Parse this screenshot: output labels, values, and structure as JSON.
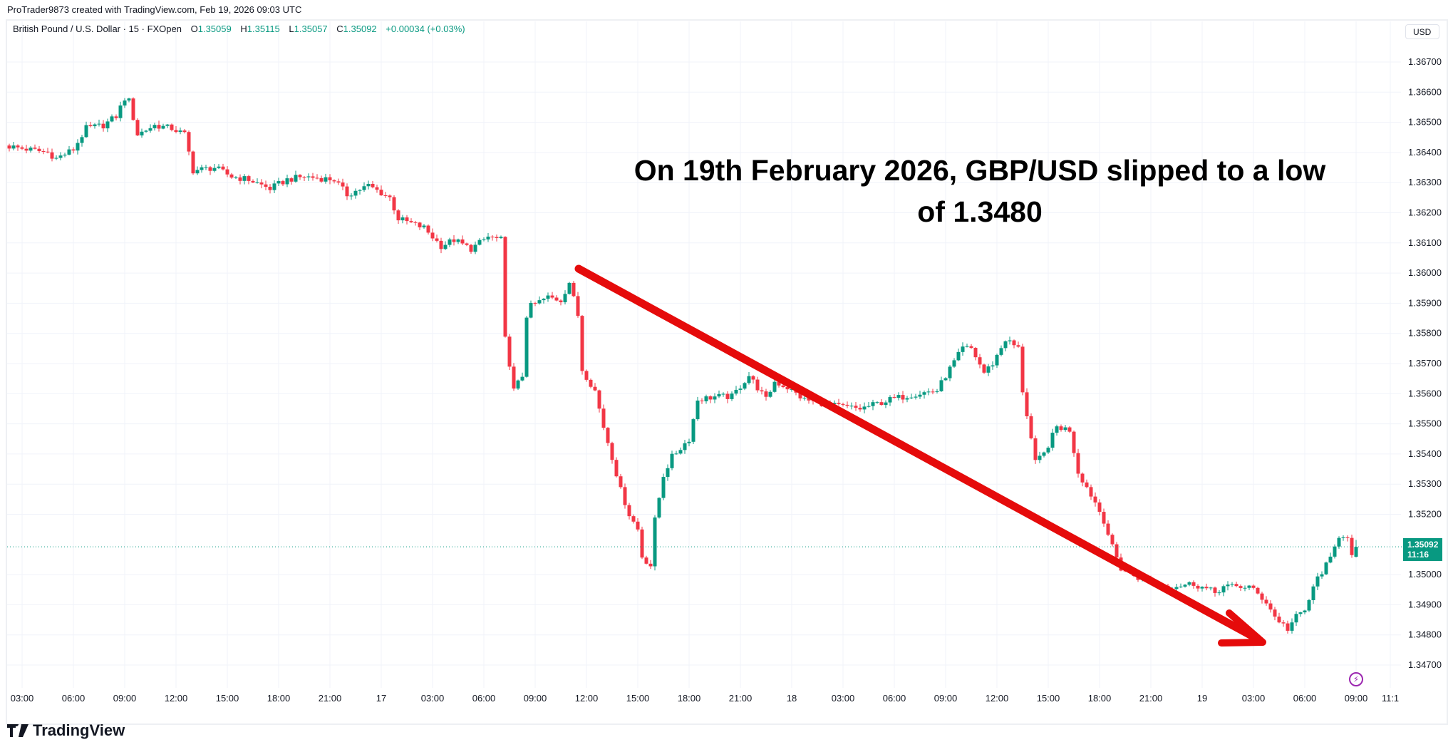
{
  "header": {
    "text": "ProTrader9873 created with TradingView.com, Feb 19, 2026 09:03 UTC"
  },
  "legend": {
    "symbol": "British Pound / U.S. Dollar · 15 · FXOpen",
    "o_label": "O",
    "o": "1.35059",
    "h_label": "H",
    "h": "1.35115",
    "l_label": "L",
    "l": "1.35057",
    "c_label": "C",
    "c": "1.35092",
    "change": "+0.00034 (+0.03%)"
  },
  "currency": "USD",
  "annotation": {
    "line1": "On 19th February 2026, GBP/USD slipped to a low",
    "line2": "of 1.3480"
  },
  "current_price": {
    "price": "1.35092",
    "countdown": "11:16"
  },
  "logo": {
    "text": "TradingView"
  },
  "colors": {
    "up": "#089981",
    "down": "#f23645",
    "arrow": "#e50b0b",
    "grid": "#f0f3fa",
    "alert": "#9c27b0"
  },
  "icons": {
    "alert": "lightning-icon",
    "logo": "tradingview-logo-icon"
  },
  "chart_data": {
    "type": "candlestick",
    "interval": "15",
    "first_candle": "2026-02-16 02:15",
    "last_candle": {
      "time": "2026-02-19 09:00",
      "o": 1.35059,
      "h": 1.35115,
      "l": 1.35057,
      "c": 1.35092
    },
    "ylim": [
      1.3465,
      1.3675
    ],
    "y_ticks": [
      "1.36700",
      "1.36600",
      "1.36500",
      "1.36400",
      "1.36300",
      "1.36200",
      "1.36100",
      "1.36000",
      "1.35900",
      "1.35800",
      "1.35700",
      "1.35600",
      "1.35500",
      "1.35400",
      "1.35300",
      "1.35200",
      "1.35000",
      "1.34900",
      "1.34800",
      "1.34700"
    ],
    "y_tick_values": [
      1.367,
      1.366,
      1.365,
      1.364,
      1.363,
      1.362,
      1.361,
      1.36,
      1.359,
      1.358,
      1.357,
      1.356,
      1.355,
      1.354,
      1.353,
      1.352,
      1.35,
      1.349,
      1.348,
      1.347
    ],
    "x_ticks": [
      {
        "label": "03:00",
        "time": "2026-02-16 03:00"
      },
      {
        "label": "06:00",
        "time": "2026-02-16 06:00"
      },
      {
        "label": "09:00",
        "time": "2026-02-16 09:00"
      },
      {
        "label": "12:00",
        "time": "2026-02-16 12:00"
      },
      {
        "label": "15:00",
        "time": "2026-02-16 15:00"
      },
      {
        "label": "18:00",
        "time": "2026-02-16 18:00"
      },
      {
        "label": "21:00",
        "time": "2026-02-16 21:00"
      },
      {
        "label": "17",
        "time": "2026-02-17 00:00"
      },
      {
        "label": "03:00",
        "time": "2026-02-17 03:00"
      },
      {
        "label": "06:00",
        "time": "2026-02-17 06:00"
      },
      {
        "label": "09:00",
        "time": "2026-02-17 09:00"
      },
      {
        "label": "12:00",
        "time": "2026-02-17 12:00"
      },
      {
        "label": "15:00",
        "time": "2026-02-17 15:00"
      },
      {
        "label": "18:00",
        "time": "2026-02-17 18:00"
      },
      {
        "label": "21:00",
        "time": "2026-02-17 21:00"
      },
      {
        "label": "18",
        "time": "2026-02-18 00:00"
      },
      {
        "label": "03:00",
        "time": "2026-02-18 03:00"
      },
      {
        "label": "06:00",
        "time": "2026-02-18 06:00"
      },
      {
        "label": "09:00",
        "time": "2026-02-18 09:00"
      },
      {
        "label": "12:00",
        "time": "2026-02-18 12:00"
      },
      {
        "label": "15:00",
        "time": "2026-02-18 15:00"
      },
      {
        "label": "18:00",
        "time": "2026-02-18 18:00"
      },
      {
        "label": "21:00",
        "time": "2026-02-18 21:00"
      },
      {
        "label": "19",
        "time": "2026-02-19 00:00"
      },
      {
        "label": "03:00",
        "time": "2026-02-19 03:00"
      },
      {
        "label": "06:00",
        "time": "2026-02-19 06:00"
      },
      {
        "label": "09:00",
        "time": "2026-02-19 09:00"
      },
      {
        "label": "11:1",
        "time": "2026-02-19 11:00"
      }
    ],
    "grid": true,
    "close_path": [
      [
        "2026-02-16 02:15",
        1.3642
      ],
      [
        "2026-02-16 04:30",
        1.364
      ],
      [
        "2026-02-16 05:00",
        1.3638
      ],
      [
        "2026-02-16 06:00",
        1.3641
      ],
      [
        "2026-02-16 06:45",
        1.3648
      ],
      [
        "2026-02-16 07:45",
        1.3649
      ],
      [
        "2026-02-16 08:30",
        1.3652
      ],
      [
        "2026-02-16 09:00",
        1.3658
      ],
      [
        "2026-02-16 09:15",
        1.3657
      ],
      [
        "2026-02-16 09:45",
        1.3646
      ],
      [
        "2026-02-16 10:45",
        1.3649
      ],
      [
        "2026-02-16 11:45",
        1.3648
      ],
      [
        "2026-02-16 12:30",
        1.3646
      ],
      [
        "2026-02-16 13:00",
        1.3634
      ],
      [
        "2026-02-16 14:15",
        1.3635
      ],
      [
        "2026-02-16 15:15",
        1.3632
      ],
      [
        "2026-02-16 16:15",
        1.3631
      ],
      [
        "2026-02-16 17:30",
        1.3628
      ],
      [
        "2026-02-16 18:30",
        1.3631
      ],
      [
        "2026-02-16 19:30",
        1.3632
      ],
      [
        "2026-02-16 21:15",
        1.3631
      ],
      [
        "2026-02-16 22:00",
        1.3626
      ],
      [
        "2026-02-16 23:15",
        1.3629
      ],
      [
        "2026-02-17 00:30",
        1.3625
      ],
      [
        "2026-02-17 01:00",
        1.3618
      ],
      [
        "2026-02-17 02:30",
        1.3615
      ],
      [
        "2026-02-17 03:30",
        1.3609
      ],
      [
        "2026-02-17 04:15",
        1.3611
      ],
      [
        "2026-02-17 05:15",
        1.3608
      ],
      [
        "2026-02-17 06:15",
        1.3612
      ],
      [
        "2026-02-17 07:00",
        1.3611
      ],
      [
        "2026-02-17 07:15",
        1.3578
      ],
      [
        "2026-02-17 07:30",
        1.357
      ],
      [
        "2026-02-17 07:45",
        1.3561
      ],
      [
        "2026-02-17 08:15",
        1.3566
      ],
      [
        "2026-02-17 08:30",
        1.3586
      ],
      [
        "2026-02-17 08:45",
        1.3589
      ],
      [
        "2026-02-17 09:45",
        1.3592
      ],
      [
        "2026-02-17 10:30",
        1.3591
      ],
      [
        "2026-02-17 11:00",
        1.3597
      ],
      [
        "2026-02-17 11:30",
        1.3586
      ],
      [
        "2026-02-17 11:45",
        1.3568
      ],
      [
        "2026-02-17 12:30",
        1.3561
      ],
      [
        "2026-02-17 13:00",
        1.3549
      ],
      [
        "2026-02-17 13:30",
        1.3539
      ],
      [
        "2026-02-17 14:00",
        1.3528
      ],
      [
        "2026-02-17 14:30",
        1.352
      ],
      [
        "2026-02-17 15:00",
        1.3515
      ],
      [
        "2026-02-17 15:15",
        1.3506
      ],
      [
        "2026-02-17 15:45",
        1.3503
      ],
      [
        "2026-02-17 16:00",
        1.3518
      ],
      [
        "2026-02-17 16:30",
        1.3533
      ],
      [
        "2026-02-17 17:00",
        1.3539
      ],
      [
        "2026-02-17 17:30",
        1.3542
      ],
      [
        "2026-02-17 18:00",
        1.3545
      ],
      [
        "2026-02-17 18:30",
        1.3558
      ],
      [
        "2026-02-17 19:30",
        1.3559
      ],
      [
        "2026-02-17 20:30",
        1.3559
      ],
      [
        "2026-02-17 21:30",
        1.3566
      ],
      [
        "2026-02-17 22:30",
        1.3558
      ],
      [
        "2026-02-17 23:00",
        1.3564
      ],
      [
        "2026-02-17 23:45",
        1.3562
      ],
      [
        "2026-02-18 00:45",
        1.3558
      ],
      [
        "2026-02-18 02:30",
        1.3556
      ],
      [
        "2026-02-18 04:00",
        1.3555
      ],
      [
        "2026-02-18 05:45",
        1.3558
      ],
      [
        "2026-02-18 07:15",
        1.356
      ],
      [
        "2026-02-18 08:30",
        1.3561
      ],
      [
        "2026-02-18 09:00",
        1.3566
      ],
      [
        "2026-02-18 10:00",
        1.3575
      ],
      [
        "2026-02-18 10:30",
        1.3575
      ],
      [
        "2026-02-18 11:15",
        1.3567
      ],
      [
        "2026-02-18 11:45",
        1.357
      ],
      [
        "2026-02-18 12:30",
        1.3578
      ],
      [
        "2026-02-18 13:15",
        1.3575
      ],
      [
        "2026-02-18 13:30",
        1.3561
      ],
      [
        "2026-02-18 14:15",
        1.3537
      ],
      [
        "2026-02-18 14:45",
        1.354
      ],
      [
        "2026-02-18 15:30",
        1.3549
      ],
      [
        "2026-02-18 16:15",
        1.3548
      ],
      [
        "2026-02-18 16:45",
        1.3534
      ],
      [
        "2026-02-18 17:45",
        1.3524
      ],
      [
        "2026-02-18 18:15",
        1.3518
      ],
      [
        "2026-02-18 18:45",
        1.3509
      ],
      [
        "2026-02-18 19:15",
        1.3502
      ],
      [
        "2026-02-18 20:15",
        1.3499
      ],
      [
        "2026-02-18 22:00",
        1.3496
      ],
      [
        "2026-02-18 23:30",
        1.3497
      ],
      [
        "2026-02-19 00:45",
        1.3494
      ],
      [
        "2026-02-19 01:15",
        1.3496
      ],
      [
        "2026-02-19 02:45",
        1.3496
      ],
      [
        "2026-02-19 03:45",
        1.3491
      ],
      [
        "2026-02-19 04:15",
        1.3486
      ],
      [
        "2026-02-19 05:00",
        1.3482
      ],
      [
        "2026-02-19 05:30",
        1.3486
      ],
      [
        "2026-02-19 06:00",
        1.3488
      ],
      [
        "2026-02-19 06:45",
        1.3499
      ],
      [
        "2026-02-19 07:30",
        1.3505
      ],
      [
        "2026-02-19 08:00",
        1.3513
      ],
      [
        "2026-02-19 08:30",
        1.3513
      ],
      [
        "2026-02-19 08:45",
        1.3506
      ],
      [
        "2026-02-19 09:00",
        1.35092
      ]
    ]
  }
}
